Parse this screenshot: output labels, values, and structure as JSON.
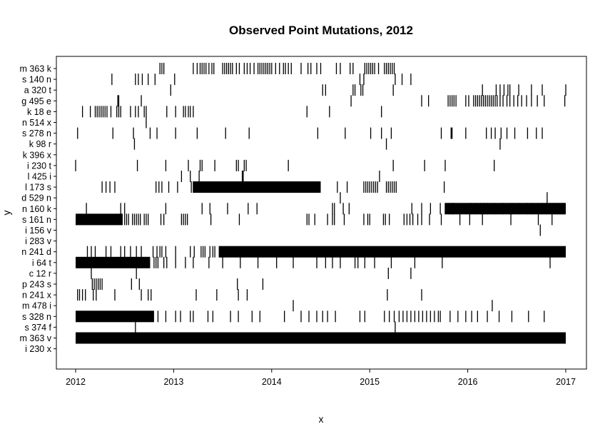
{
  "chart_data": {
    "type": "scatter",
    "mark": "vertical-tick",
    "title": "Observed Point Mutations, 2012",
    "xlabel": "x",
    "ylabel": "y",
    "xlim": [
      2012,
      2017
    ],
    "xticks": [
      2012,
      2013,
      2014,
      2015,
      2016,
      2017
    ],
    "grid": false,
    "legend": "none",
    "mark_color": "#000000",
    "categories": [
      "m 363 k",
      "s 140 n",
      "a 320 t",
      "g 495 e",
      "k 18 e",
      "n 514 x",
      "s 278 n",
      "k 98 r",
      "k 396 x",
      "i 230 t",
      "l 425 i",
      "l 173 s",
      "d 529 n",
      "n 160 k",
      "s 161 n",
      "i 156 v",
      "i 283 v",
      "n 241 d",
      "i 64 t",
      "c 12 r",
      "p 243 s",
      "n 241 x",
      "m 478 i",
      "s 328 n",
      "s 374 f",
      "m 363 v",
      "i 230 x"
    ],
    "series": [
      {
        "category": "m 363 k",
        "dense": [],
        "x": [
          2012.86,
          2012.88,
          2012.9,
          2013.2,
          2013.24,
          2013.27,
          2013.29,
          2013.31,
          2013.33,
          2013.36,
          2013.39,
          2013.41,
          2013.5,
          2013.52,
          2013.54,
          2013.56,
          2013.58,
          2013.6,
          2013.64,
          2013.67,
          2013.72,
          2013.75,
          2013.78,
          2013.82,
          2013.86,
          2013.88,
          2013.9,
          2013.92,
          2013.94,
          2013.96,
          2013.98,
          2014.0,
          2014.04,
          2014.08,
          2014.12,
          2014.14,
          2014.17,
          2014.2,
          2014.3,
          2014.37,
          2014.4,
          2014.46,
          2014.5,
          2014.66,
          2014.7,
          2014.8,
          2014.83,
          2014.95,
          2014.97,
          2014.99,
          2015.01,
          2015.03,
          2015.05,
          2015.09,
          2015.15,
          2015.17,
          2015.19,
          2015.21,
          2015.23,
          2015.25
        ]
      },
      {
        "category": "s 140 n",
        "dense": [],
        "x": [
          2012.37,
          2012.61,
          2012.64,
          2012.68,
          2012.74,
          2012.81,
          2013.01,
          2014.9,
          2014.94,
          2015.26,
          2015.33,
          2015.42
        ]
      },
      {
        "category": "a 320 t",
        "dense": [],
        "x": [
          2012.97,
          2014.52,
          2014.55,
          2014.83,
          2014.85,
          2014.91,
          2014.93,
          2015.24,
          2016.15,
          2016.29,
          2016.33,
          2016.37,
          2016.41,
          2016.43,
          2016.52,
          2016.65,
          2016.76,
          2017.0
        ]
      },
      {
        "category": "g 495 e",
        "dense": [],
        "x": [
          2012.43,
          2012.44,
          2012.67,
          2014.81,
          2015.53,
          2015.6,
          2015.8,
          2015.82,
          2015.84,
          2015.86,
          2015.88,
          2015.98,
          2016.01,
          2016.06,
          2016.08,
          2016.1,
          2016.12,
          2016.14,
          2016.16,
          2016.18,
          2016.2,
          2016.22,
          2016.24,
          2016.26,
          2016.28,
          2016.3,
          2016.33,
          2016.36,
          2016.4,
          2016.43,
          2016.47,
          2016.51,
          2016.55,
          2016.6,
          2016.65,
          2016.71,
          2016.78,
          2016.99
        ]
      },
      {
        "category": "k 18 e",
        "dense": [],
        "x": [
          2012.07,
          2012.15,
          2012.2,
          2012.22,
          2012.24,
          2012.26,
          2012.28,
          2012.3,
          2012.32,
          2012.36,
          2012.42,
          2012.44,
          2012.46,
          2012.56,
          2012.61,
          2012.64,
          2012.7,
          2012.72,
          2012.93,
          2013.02,
          2013.1,
          2013.12,
          2013.15,
          2013.17,
          2013.2,
          2014.36,
          2014.59,
          2015.12
        ]
      },
      {
        "category": "n 514 x",
        "dense": [],
        "x": [
          2012.72
        ]
      },
      {
        "category": "s 278 n",
        "dense": [],
        "x": [
          2012.02,
          2012.38,
          2012.59,
          2012.76,
          2012.83,
          2013.02,
          2013.24,
          2013.53,
          2013.77,
          2014.47,
          2014.75,
          2015.01,
          2015.12,
          2015.22,
          2015.73,
          2015.83,
          2015.84,
          2015.98,
          2016.19,
          2016.24,
          2016.28,
          2016.34,
          2016.4,
          2016.48,
          2016.61,
          2016.7,
          2016.76
        ]
      },
      {
        "category": "k 98 r",
        "dense": [],
        "x": [
          2012.6,
          2015.17,
          2016.33
        ]
      },
      {
        "category": "k 396 x",
        "dense": [],
        "x": []
      },
      {
        "category": "i 230 t",
        "dense": [],
        "x": [
          2012.0,
          2012.63,
          2012.92,
          2013.15,
          2013.27,
          2013.29,
          2013.42,
          2013.64,
          2013.66,
          2013.72,
          2013.74,
          2014.17,
          2015.24,
          2015.56,
          2015.77,
          2016.27
        ]
      },
      {
        "category": "l 425 i",
        "dense": [],
        "x": [
          2013.08,
          2013.17,
          2013.26,
          2013.7,
          2013.71,
          2015.1
        ]
      },
      {
        "category": "l 173 s",
        "dense": [
          [
            2013.2,
            2014.5
          ]
        ],
        "x": [
          2012.27,
          2012.31,
          2012.35,
          2012.4,
          2012.82,
          2012.85,
          2012.88,
          2012.95,
          2013.04,
          2013.18,
          2013.2,
          2014.67,
          2014.77,
          2014.94,
          2014.96,
          2014.98,
          2015.0,
          2015.02,
          2015.04,
          2015.06,
          2015.08,
          2015.17,
          2015.19,
          2015.21,
          2015.23,
          2015.25,
          2015.27,
          2015.76
        ]
      },
      {
        "category": "d 529 n",
        "dense": [],
        "x": [
          2014.7,
          2016.81
        ]
      },
      {
        "category": "n 160 k",
        "dense": [
          [
            2015.77,
            2017.0
          ]
        ],
        "x": [
          2012.11,
          2012.46,
          2012.5,
          2012.92,
          2013.29,
          2013.37,
          2013.55,
          2013.76,
          2013.85,
          2014.62,
          2014.64,
          2014.73,
          2014.79,
          2015.43,
          2015.53,
          2015.62,
          2015.72,
          2015.77,
          2015.81,
          2015.84,
          2015.85,
          2016.03,
          2016.08,
          2016.13,
          2016.16,
          2016.2,
          2016.27,
          2016.36,
          2016.45,
          2016.52,
          2016.61,
          2016.66,
          2016.72,
          2016.76,
          2016.8,
          2016.84,
          2016.86,
          2016.88,
          2016.9,
          2016.92,
          2016.94,
          2016.96,
          2016.98
        ]
      },
      {
        "category": "s 161 n",
        "dense": [
          [
            2012.0,
            2012.48
          ]
        ],
        "x": [
          2012.5,
          2012.52,
          2012.54,
          2012.58,
          2012.6,
          2012.62,
          2012.64,
          2012.66,
          2012.7,
          2012.72,
          2012.74,
          2012.87,
          2012.9,
          2013.08,
          2013.1,
          2013.12,
          2013.14,
          2013.38,
          2013.67,
          2014.36,
          2014.38,
          2014.44,
          2014.57,
          2014.62,
          2014.64,
          2014.74,
          2014.94,
          2014.98,
          2015.0,
          2015.14,
          2015.16,
          2015.2,
          2015.35,
          2015.38,
          2015.41,
          2015.44,
          2015.49,
          2015.53,
          2015.61,
          2015.73,
          2015.92,
          2016.02,
          2016.15,
          2016.44,
          2016.72,
          2016.86
        ]
      },
      {
        "category": "i 156 v",
        "dense": [],
        "x": [
          2016.74
        ]
      },
      {
        "category": "i 283 v",
        "dense": [],
        "x": []
      },
      {
        "category": "n 241 d",
        "dense": [
          [
            2013.46,
            2017.0
          ]
        ],
        "x": [
          2012.12,
          2012.16,
          2012.2,
          2012.31,
          2012.36,
          2012.46,
          2012.5,
          2012.56,
          2012.62,
          2012.67,
          2012.79,
          2012.83,
          2012.86,
          2012.88,
          2012.92,
          2013.02,
          2013.17,
          2013.21,
          2013.28,
          2013.3,
          2013.32,
          2013.37,
          2013.4,
          2013.42
        ]
      },
      {
        "category": "i 64 t",
        "dense": [
          [
            2012.0,
            2012.76
          ]
        ],
        "x": [
          2012.8,
          2012.82,
          2012.84,
          2012.9,
          2012.93,
          2013.02,
          2013.12,
          2013.2,
          2013.36,
          2013.5,
          2013.68,
          2013.86,
          2014.05,
          2014.22,
          2014.46,
          2014.55,
          2014.62,
          2014.7,
          2014.85,
          2014.88,
          2014.95,
          2015.05,
          2015.22,
          2015.46,
          2015.74,
          2016.84
        ]
      },
      {
        "category": "c 12 r",
        "dense": [],
        "x": [
          2012.16,
          2012.62,
          2015.19,
          2015.42
        ]
      },
      {
        "category": "p 243 s",
        "dense": [],
        "x": [
          2012.17,
          2012.19,
          2012.21,
          2012.23,
          2012.25,
          2012.27,
          2012.57,
          2012.65,
          2013.65,
          2013.91
        ]
      },
      {
        "category": "n 241 x",
        "dense": [],
        "x": [
          2012.02,
          2012.04,
          2012.07,
          2012.1,
          2012.18,
          2012.21,
          2012.4,
          2012.67,
          2012.74,
          2012.77,
          2013.23,
          2013.44,
          2013.66,
          2013.75,
          2015.18,
          2015.53
        ]
      },
      {
        "category": "m 478 i",
        "dense": [],
        "x": [
          2014.22,
          2016.25
        ]
      },
      {
        "category": "s 328 n",
        "dense": [
          [
            2012.0,
            2012.8
          ]
        ],
        "x": [
          2012.84,
          2012.92,
          2013.02,
          2013.07,
          2013.17,
          2013.2,
          2013.35,
          2013.4,
          2013.58,
          2013.66,
          2013.8,
          2013.88,
          2014.13,
          2014.3,
          2014.38,
          2014.46,
          2014.52,
          2014.57,
          2014.65,
          2014.9,
          2014.95,
          2015.15,
          2015.2,
          2015.25,
          2015.3,
          2015.34,
          2015.38,
          2015.42,
          2015.46,
          2015.5,
          2015.54,
          2015.58,
          2015.62,
          2015.66,
          2015.7,
          2015.72,
          2015.82,
          2015.9,
          2015.98,
          2016.04,
          2016.1,
          2016.2,
          2016.32,
          2016.45,
          2016.62,
          2016.78
        ]
      },
      {
        "category": "s 374 f",
        "dense": [],
        "x": [
          2012.61,
          2015.26
        ]
      },
      {
        "category": "m 363 v",
        "dense": [
          [
            2012.0,
            2017.0
          ]
        ],
        "x": []
      },
      {
        "category": "i 230 x",
        "dense": [],
        "x": []
      }
    ]
  }
}
